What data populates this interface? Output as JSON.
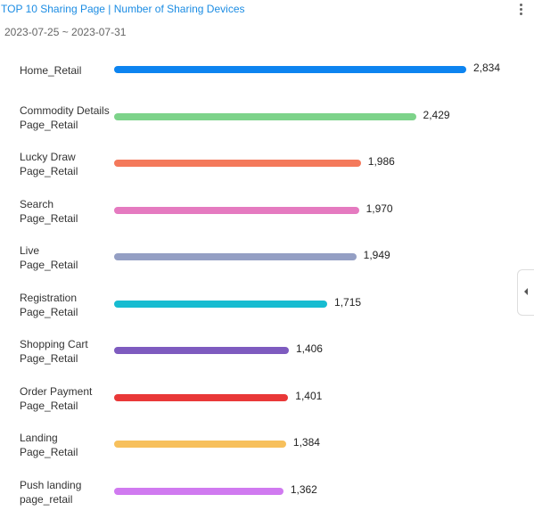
{
  "chart_data": {
    "type": "bar",
    "orientation": "horizontal",
    "title": "TOP 10 Sharing Page | Number of Sharing Devices",
    "subtitle": "2023-07-25 ~ 2023-07-31",
    "categories": [
      "Home_Retail",
      "Commodity Details\nPage_Retail",
      "Lucky Draw\nPage_Retail",
      "Search\nPage_Retail",
      "Live\nPage_Retail",
      "Registration\nPage_Retail",
      "Shopping Cart\nPage_Retail",
      "Order Payment\nPage_Retail",
      "Landing\nPage_Retail",
      "Push landing\npage_retail"
    ],
    "values": [
      2834,
      2429,
      1986,
      1970,
      1949,
      1715,
      1406,
      1401,
      1384,
      1362
    ],
    "value_labels": [
      "2,834",
      "2,429",
      "1,986",
      "1,970",
      "1,949",
      "1,715",
      "1,406",
      "1,401",
      "1,384",
      "1,362"
    ],
    "colors": [
      "#0d84f0",
      "#7dd38a",
      "#f4795b",
      "#e57ac0",
      "#949fc4",
      "#17bcd1",
      "#7e5bbf",
      "#e93838",
      "#f7c05c",
      "#d07af0"
    ]
  }
}
